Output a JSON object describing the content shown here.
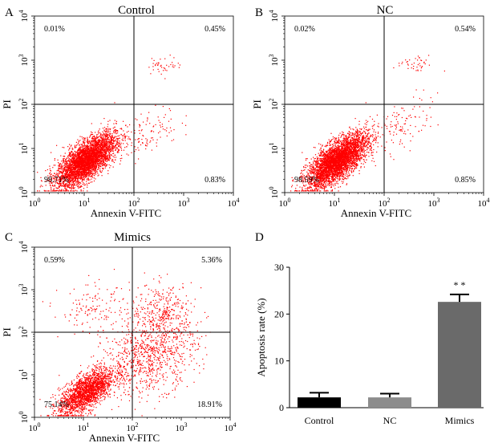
{
  "figure": {
    "panels": [
      {
        "letter": "A",
        "title": "Control",
        "xlabel": "Annexin V-FITC",
        "ylabel": "PI",
        "quadrants": {
          "ul": "0.01%",
          "ur": "0.45%",
          "ll": "98.71%",
          "lr": "0.83%"
        }
      },
      {
        "letter": "B",
        "title": "NC",
        "xlabel": "Annexin V-FITC",
        "ylabel": "PI",
        "quadrants": {
          "ul": "0.02%",
          "ur": "0.54%",
          "ll": "98.59%",
          "lr": "0.85%"
        }
      },
      {
        "letter": "C",
        "title": "Mimics",
        "xlabel": "Annexin V-FITC",
        "ylabel": "PI",
        "quadrants": {
          "ul": "0.59%",
          "ur": "5.36%",
          "ll": "75.14%",
          "lr": "18.91%"
        }
      },
      {
        "letter": "D",
        "ylabel": "Apoptosis rate (%)",
        "significance": "* *"
      }
    ]
  },
  "colors": {
    "dots": "#ff0000",
    "axis": "#000000",
    "bar_control": "#000000",
    "bar_nc": "#8c8c8c",
    "bar_mimics": "#6a6a6a"
  },
  "chart_data": [
    {
      "type": "scatter",
      "title": "Control",
      "xlabel": "Annexin V-FITC",
      "ylabel": "PI",
      "x_scale": "log",
      "y_scale": "log",
      "xlim": [
        1,
        10000
      ],
      "ylim": [
        1,
        10000
      ],
      "x_ticks": [
        "10^0",
        "10^1",
        "10^2",
        "10^3",
        "10^4"
      ],
      "y_ticks": [
        "10^0",
        "10^1",
        "10^2",
        "10^3",
        "10^4"
      ],
      "gates": {
        "x": 100,
        "y": 100
      },
      "quadrant_percentages": {
        "upper_left": 0.01,
        "upper_right": 0.45,
        "lower_left": 98.71,
        "lower_right": 0.83
      }
    },
    {
      "type": "scatter",
      "title": "NC",
      "xlabel": "Annexin V-FITC",
      "ylabel": "PI",
      "x_scale": "log",
      "y_scale": "log",
      "xlim": [
        1,
        10000
      ],
      "ylim": [
        1,
        10000
      ],
      "x_ticks": [
        "10^0",
        "10^1",
        "10^2",
        "10^3",
        "10^4"
      ],
      "y_ticks": [
        "10^0",
        "10^1",
        "10^2",
        "10^3",
        "10^4"
      ],
      "gates": {
        "x": 100,
        "y": 100
      },
      "quadrant_percentages": {
        "upper_left": 0.02,
        "upper_right": 0.54,
        "lower_left": 98.59,
        "lower_right": 0.85
      }
    },
    {
      "type": "scatter",
      "title": "Mimics",
      "xlabel": "Annexin V-FITC",
      "ylabel": "PI",
      "x_scale": "log",
      "y_scale": "log",
      "xlim": [
        1,
        10000
      ],
      "ylim": [
        1,
        10000
      ],
      "x_ticks": [
        "10^0",
        "10^1",
        "10^2",
        "10^3",
        "10^4"
      ],
      "y_ticks": [
        "10^0",
        "10^1",
        "10^2",
        "10^3",
        "10^4"
      ],
      "gates": {
        "x": 100,
        "y": 100
      },
      "quadrant_percentages": {
        "upper_left": 0.59,
        "upper_right": 5.36,
        "lower_left": 75.14,
        "lower_right": 18.91
      }
    },
    {
      "type": "bar",
      "categories": [
        "Control",
        "NC",
        "Mimics"
      ],
      "values": [
        2.2,
        2.2,
        22.6
      ],
      "errors": [
        1.0,
        0.8,
        1.6
      ],
      "ylabel": "Apoptosis rate (%)",
      "ylim": [
        0,
        30
      ],
      "yticks": [
        0,
        10,
        20,
        30
      ],
      "annotation": "* *"
    }
  ]
}
